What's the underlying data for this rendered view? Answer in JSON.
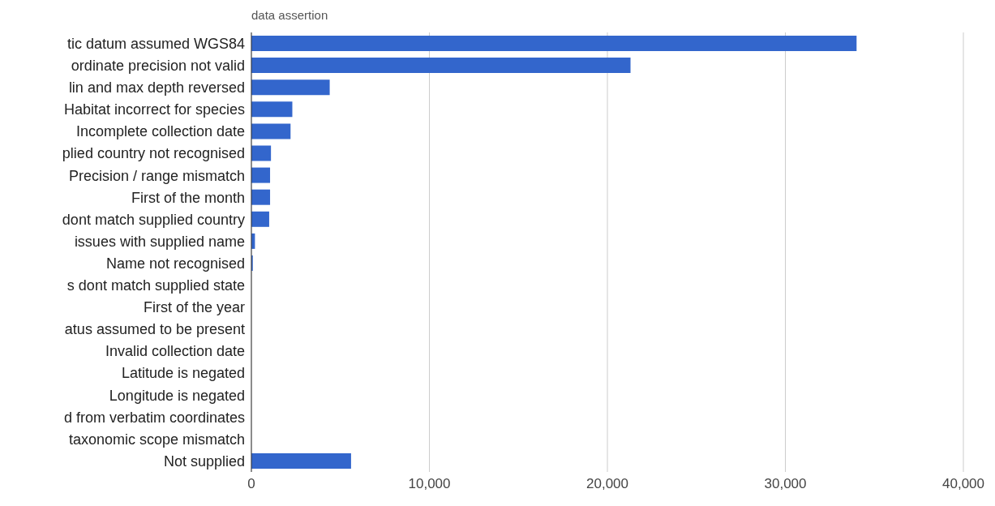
{
  "chart_data": {
    "type": "bar",
    "orientation": "horizontal",
    "title": "data assertion",
    "categories": [
      "tic datum assumed WGS84",
      "ordinate precision not valid",
      "lin and max depth reversed",
      "Habitat incorrect for species",
      "Incomplete collection date",
      "plied country not recognised",
      "Precision / range mismatch",
      "First of the month",
      "dont match supplied country",
      "issues with supplied name",
      "Name not recognised",
      "s dont match supplied state",
      "First of the year",
      "atus assumed to be present",
      "Invalid collection date",
      "Latitude is negated",
      "Longitude is negated",
      "d from verbatim coordinates",
      "taxonomic scope mismatch",
      "Not supplied"
    ],
    "values": [
      34000,
      21300,
      4400,
      2300,
      2200,
      1100,
      1050,
      1050,
      1000,
      200,
      80,
      null,
      null,
      0,
      0,
      0,
      0,
      0,
      0,
      5600
    ],
    "color": "#3366cc",
    "xlim": [
      0,
      40000
    ],
    "xticks": [
      {
        "value": 0,
        "label": "0"
      },
      {
        "value": 10000,
        "label": "10,000"
      },
      {
        "value": 20000,
        "label": "20,000"
      },
      {
        "value": 30000,
        "label": "30,000"
      },
      {
        "value": 40000,
        "label": "40,000"
      }
    ],
    "grid": "x",
    "legend": false
  }
}
